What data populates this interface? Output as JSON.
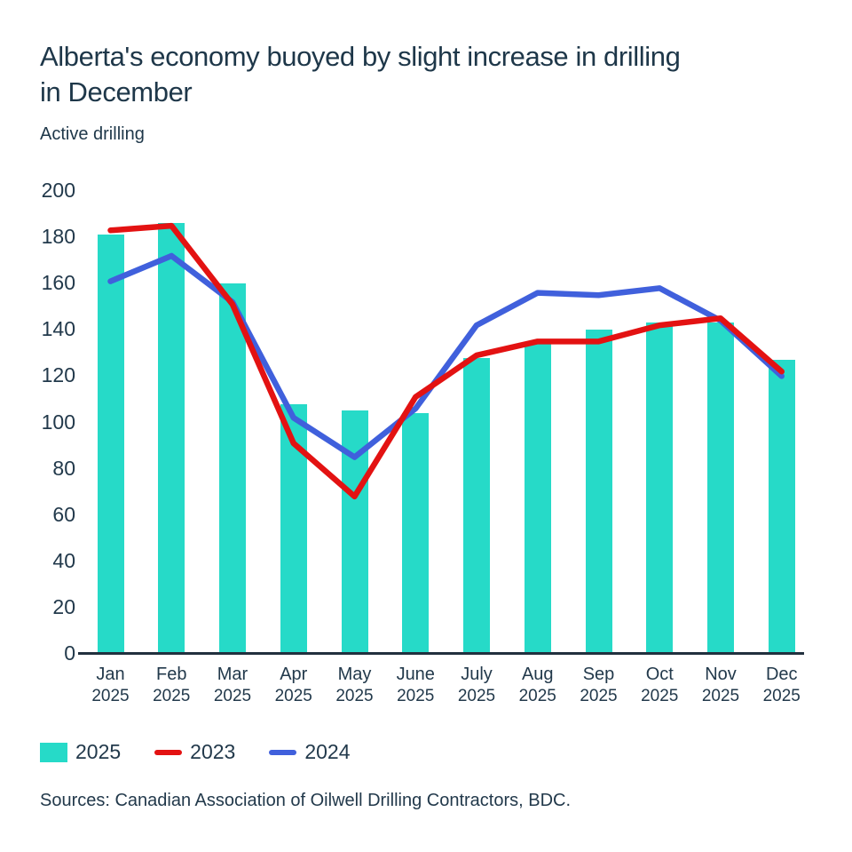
{
  "chart_data": {
    "type": "bar+line",
    "title": "Alberta's economy buoyed by slight increase in drilling in December",
    "subtitle": "Active drilling",
    "categories": [
      "Jan",
      "Feb",
      "Mar",
      "Apr",
      "May",
      "June",
      "July",
      "Aug",
      "Sep",
      "Oct",
      "Nov",
      "Dec"
    ],
    "category_year": "2025",
    "series": [
      {
        "name": "2025",
        "type": "bar",
        "color": "#26DAC8",
        "values": [
          181,
          186,
          160,
          108,
          105,
          104,
          128,
          134,
          140,
          143,
          143,
          127
        ]
      },
      {
        "name": "2023",
        "type": "line",
        "color": "#E31212",
        "values": [
          183,
          185,
          151,
          91,
          68,
          111,
          129,
          135,
          135,
          142,
          145,
          122
        ]
      },
      {
        "name": "2024",
        "type": "line",
        "color": "#4060DC",
        "values": [
          161,
          172,
          152,
          102,
          85,
          106,
          142,
          156,
          155,
          158,
          144,
          120
        ]
      }
    ],
    "ylim": [
      0,
      200
    ],
    "ytick_step": 20,
    "ytick_labels": [
      "0",
      "20",
      "40",
      "60",
      "80",
      "100",
      "120",
      "140",
      "160",
      "180",
      "200"
    ],
    "grid": false,
    "legend_position": "bottom-left",
    "source": "Sources: Canadian Association of Oilwell Drilling Contractors, BDC."
  }
}
